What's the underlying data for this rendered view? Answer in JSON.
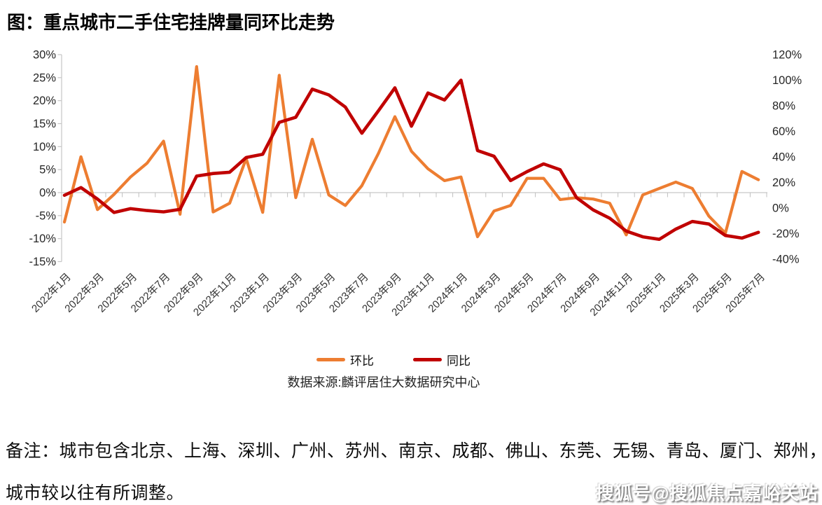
{
  "title": "图：重点城市二手住宅挂牌量同环比走势",
  "chart_data": {
    "type": "line",
    "title": "图：重点城市二手住宅挂牌量同环比走势",
    "categories": [
      "2022年1月",
      "2022年2月",
      "2022年3月",
      "2022年4月",
      "2022年5月",
      "2022年6月",
      "2022年7月",
      "2022年8月",
      "2022年9月",
      "2022年10月",
      "2022年11月",
      "2022年12月",
      "2023年1月",
      "2023年2月",
      "2023年3月",
      "2023年4月",
      "2023年5月",
      "2023年6月",
      "2023年7月",
      "2023年8月",
      "2023年9月",
      "2023年10月",
      "2023年11月",
      "2023年12月",
      "2024年1月",
      "2024年2月",
      "2024年3月",
      "2024年4月",
      "2024年5月",
      "2024年6月",
      "2024年7月",
      "2024年8月",
      "2024年9月",
      "2024年10月",
      "2024年11月",
      "2024年12月",
      "2025年1月",
      "2025年2月",
      "2025年3月",
      "2025年4月",
      "2025年5月",
      "2025年6月",
      "2025年7月"
    ],
    "x_tick_interval": 2,
    "series": [
      {
        "name": "环比",
        "yaxis": "left",
        "color": "#ED7D31",
        "values": [
          -6.4,
          7.8,
          -3.7,
          -0.4,
          3.4,
          6.4,
          11.2,
          -4.7,
          27.4,
          -4.2,
          -2.3,
          7.4,
          -4.3,
          25.5,
          -1.1,
          11.6,
          -0.5,
          -2.8,
          1.5,
          8.5,
          16.5,
          9.0,
          5.2,
          2.6,
          3.4,
          -9.6,
          -4.0,
          -2.8,
          3.1,
          3.1,
          -1.5,
          -1.1,
          -1.4,
          -2.3,
          -9.2,
          -0.5,
          0.9,
          2.3,
          0.9,
          -5.1,
          -8.8,
          4.6,
          2.8
        ]
      },
      {
        "name": "同比",
        "yaxis": "right",
        "color": "#C00000",
        "values": [
          10,
          16,
          7,
          -3.5,
          -0.5,
          -2,
          -3,
          -1,
          25,
          27,
          28,
          39.5,
          42,
          67,
          71,
          93,
          88.5,
          79,
          58.5,
          76,
          94,
          64,
          90,
          84.5,
          100,
          45,
          40.5,
          21.5,
          28.5,
          34.5,
          30,
          8,
          -1.5,
          -8,
          -18,
          -22.5,
          -24.5,
          -16.5,
          -10.5,
          -12.5,
          -21.5,
          -23.5,
          -19
        ]
      }
    ],
    "left_axis": {
      "unit": "%",
      "min": -15,
      "max": 30,
      "tick_step": 5,
      "tick_labels": [
        "30%",
        "25%",
        "20%",
        "15%",
        "10%",
        "5%",
        "0%",
        "-5%",
        "-10%",
        "-15%"
      ]
    },
    "right_axis": {
      "unit": "%",
      "min": -40,
      "max": 120,
      "tick_step": 20,
      "tick_labels": [
        "120%",
        "100%",
        "80%",
        "60%",
        "40%",
        "20%",
        "0%",
        "-20%",
        "-40%"
      ]
    },
    "grid": "zero-line-only",
    "legend_position": "bottom-center"
  },
  "legend": {
    "items": [
      {
        "label": "环比",
        "color": "#ED7D31"
      },
      {
        "label": "同比",
        "color": "#C00000"
      }
    ]
  },
  "source": "数据来源:麟评居住大数据研究中心",
  "footnote": {
    "line1": "备注：城市包含北京、上海、深圳、广州、苏州、南京、成都、佛山、东莞、无锡、青岛、厦门、郑州，",
    "line2": "城市较以往有所调整。"
  },
  "watermark": "搜狐号@搜狐焦点嘉峪关站",
  "colors": {
    "mom_line": "#ED7D31",
    "yoy_line": "#C00000",
    "axis_text": "#262626",
    "x_label_text": "#333333",
    "grid_line": "#D2D2D2",
    "axis_line": "#C6C6C6"
  }
}
